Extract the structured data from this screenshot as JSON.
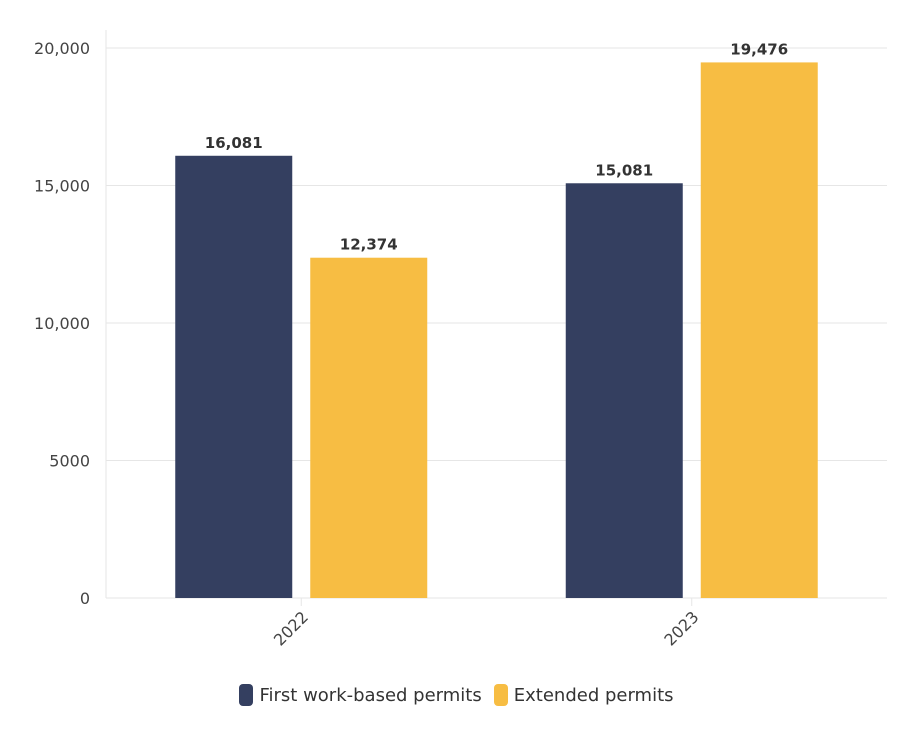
{
  "chart_data": {
    "type": "bar",
    "categories": [
      "2022",
      "2023"
    ],
    "series": [
      {
        "name": "First work-based permits",
        "color": "#343f60",
        "values": [
          16081,
          15081
        ],
        "labels": [
          "16,081",
          "15,081"
        ]
      },
      {
        "name": "Extended permits",
        "color": "#f7bd43",
        "values": [
          12374,
          19476
        ],
        "labels": [
          "12,374",
          "19,476"
        ]
      }
    ],
    "ylim": [
      0,
      20000
    ],
    "yticks": [
      0,
      5000,
      10000,
      15000,
      20000
    ],
    "ytick_labels": [
      "0",
      "5000",
      "10,000",
      "15,000",
      "20,000"
    ],
    "grid": true,
    "legend_position": "bottom-center",
    "gridline_color": "#e6e6e6",
    "axis_color": "#e6e6e6"
  }
}
